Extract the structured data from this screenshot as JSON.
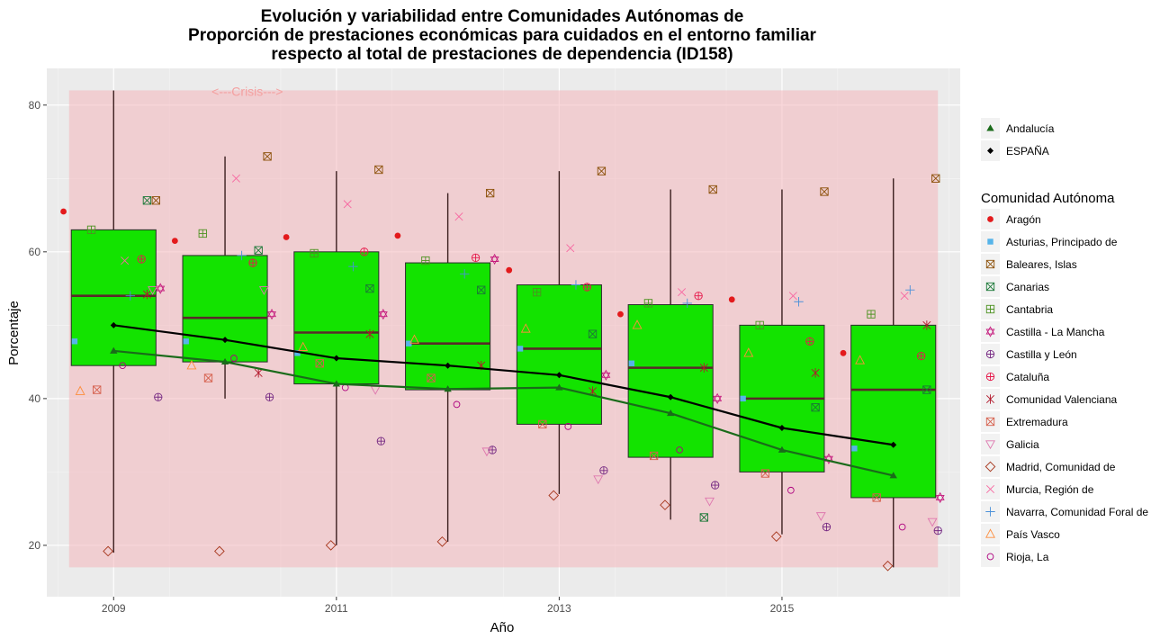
{
  "chart_data": {
    "type": "boxplot",
    "title_lines": [
      "Evolución y variabilidad entre Comunidades Autónomas de",
      "Proporción de prestaciones económicas para cuidados en el entorno familiar",
      "respecto al total de prestaciones de dependencia (ID158)"
    ],
    "xlabel": "Año",
    "ylabel": "Porcentaje",
    "x_ticks": [
      "2009",
      "2011",
      "2013",
      "2015"
    ],
    "y_ticks": [
      20,
      40,
      60,
      80
    ],
    "xlim": [
      2008.4,
      2016.6
    ],
    "ylim": [
      13,
      85
    ],
    "crisis_label": "<---Crisis--->",
    "crisis_band": {
      "x": [
        2008.6,
        2016.4
      ],
      "y": [
        17,
        82
      ],
      "color": "#f4b6bc"
    },
    "years": [
      2009,
      2010,
      2011,
      2012,
      2013,
      2014,
      2015,
      2016
    ],
    "boxes": [
      {
        "year": 2009,
        "min": 19,
        "q1": 44.5,
        "median": 54,
        "q3": 63,
        "max": 82
      },
      {
        "year": 2010,
        "min": 40,
        "q1": 45,
        "median": 51,
        "q3": 59.5,
        "max": 73
      },
      {
        "year": 2011,
        "min": 20,
        "q1": 42,
        "median": 49,
        "q3": 60,
        "max": 71
      },
      {
        "year": 2012,
        "min": 20.5,
        "q1": 41.2,
        "median": 47.5,
        "q3": 58.5,
        "max": 68
      },
      {
        "year": 2013,
        "min": 27,
        "q1": 36.5,
        "median": 46.8,
        "q3": 55.5,
        "max": 71
      },
      {
        "year": 2014,
        "min": 23.5,
        "q1": 32,
        "median": 44.2,
        "q3": 52.8,
        "max": 68.5
      },
      {
        "year": 2015,
        "min": 21.5,
        "q1": 30,
        "median": 40,
        "q3": 50,
        "max": 68.5
      },
      {
        "year": 2016,
        "min": 17,
        "q1": 26.5,
        "median": 41.2,
        "q3": 50,
        "max": 70
      }
    ],
    "box_fill": "#13e300",
    "lines": [
      {
        "name": "Andalucía",
        "color": "#1a6b1a",
        "marker": "triangle",
        "values": [
          46.5,
          45,
          42,
          41.3,
          41.5,
          38,
          33,
          29.5
        ]
      },
      {
        "name": "ESPAÑA",
        "color": "#000000",
        "marker": "diamond",
        "values": [
          50,
          48,
          45.5,
          44.5,
          43.2,
          40.2,
          36,
          33.7
        ]
      }
    ],
    "legend_title": "Comunidad Autónoma",
    "communities": [
      {
        "name": "Aragón",
        "color": "#e31a1c",
        "shape": "dot",
        "offset": -0.45,
        "values": [
          65.5,
          61.5,
          62,
          62.2,
          57.5,
          51.5,
          53.5,
          46.2
        ]
      },
      {
        "name": "Asturias, Principado de",
        "color": "#56b4e9",
        "shape": "square",
        "offset": -0.35,
        "values": [
          47.8,
          47.8,
          46.2,
          47.5,
          46.8,
          44.8,
          40,
          33.2
        ]
      },
      {
        "name": "Baleares, Islas",
        "color": "#8c510a",
        "shape": "boxx",
        "offset": 0.38,
        "values": [
          67,
          73,
          71.2,
          68,
          71,
          68.5,
          68.2,
          70
        ]
      },
      {
        "name": "Canarias",
        "color": "#1b7837",
        "shape": "boxx",
        "offset": 0.3,
        "values": [
          67,
          60.2,
          55,
          54.8,
          48.8,
          23.8,
          38.8,
          41.2
        ]
      },
      {
        "name": "Cantabria",
        "color": "#4d9221",
        "shape": "boxplus",
        "offset": -0.2,
        "values": [
          63,
          62.5,
          59.8,
          58.8,
          54.5,
          53,
          50,
          51.5
        ]
      },
      {
        "name": "Castilla - La Mancha",
        "color": "#c51b7d",
        "shape": "star6",
        "offset": 0.42,
        "values": [
          55,
          51.5,
          51.5,
          59,
          43.2,
          40,
          31.8,
          26.5
        ]
      },
      {
        "name": "Castilla y León",
        "color": "#762a83",
        "shape": "circleplus",
        "offset": 0.4,
        "values": [
          40.2,
          40.2,
          34.2,
          33,
          30.2,
          28.2,
          22.5,
          22
        ]
      },
      {
        "name": "Cataluña",
        "color": "#e6194b",
        "shape": "circleplus",
        "offset": 0.25,
        "values": [
          59,
          58.5,
          60,
          59.2,
          55.2,
          54,
          47.8,
          45.8
        ]
      },
      {
        "name": "Comunidad Valenciana",
        "color": "#b2182b",
        "shape": "asterisk",
        "offset": 0.3,
        "values": [
          54.2,
          43.5,
          48.8,
          44.5,
          41,
          44.2,
          43.5,
          50
        ]
      },
      {
        "name": "Extremadura",
        "color": "#d6604d",
        "shape": "boxx",
        "offset": -0.15,
        "values": [
          41.2,
          42.8,
          44.8,
          42.8,
          36.5,
          32.2,
          29.8,
          26.5
        ]
      },
      {
        "name": "Galicia",
        "color": "#de77ae",
        "shape": "downtriangle",
        "offset": 0.35,
        "values": [
          54.8,
          54.8,
          41.2,
          32.8,
          29,
          26,
          24,
          23.2
        ]
      },
      {
        "name": "Madrid, Comunidad de",
        "color": "#a6361c",
        "shape": "diamondopen",
        "offset": -0.05,
        "values": [
          19.2,
          19.2,
          20,
          20.5,
          26.8,
          25.5,
          21.2,
          17.2
        ]
      },
      {
        "name": "Murcia, Región de",
        "color": "#f768a1",
        "shape": "cross",
        "offset": 0.1,
        "values": [
          58.8,
          70,
          66.5,
          64.8,
          60.5,
          54.5,
          54,
          54
        ]
      },
      {
        "name": "Navarra, Comunidad Foral de",
        "color": "#4a90d9",
        "shape": "plus",
        "offset": 0.15,
        "values": [
          54,
          59.5,
          58,
          57,
          55.5,
          53,
          53.2,
          54.8
        ]
      },
      {
        "name": "País Vasco",
        "color": "#fd8d3c",
        "shape": "triangleopen",
        "offset": -0.3,
        "values": [
          41,
          44.5,
          47,
          48,
          49.5,
          50,
          46.2,
          45.2
        ]
      },
      {
        "name": "Rioja, La",
        "color": "#ae017e",
        "shape": "circleopen",
        "offset": 0.08,
        "values": [
          44.5,
          45.5,
          41.5,
          39.2,
          36.2,
          33,
          27.5,
          22.5
        ]
      }
    ]
  }
}
